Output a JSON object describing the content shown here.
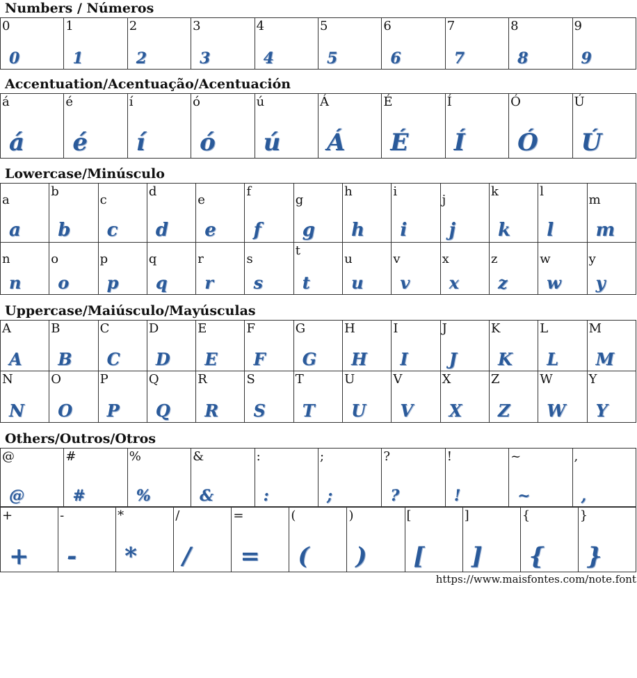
{
  "accent_color": "#2a5a9a",
  "sections": [
    {
      "title": "Numbers / Números",
      "rows": [
        [
          "0",
          "1",
          "2",
          "3",
          "4",
          "5",
          "6",
          "7",
          "8",
          "9"
        ]
      ]
    },
    {
      "title": "Accentuation/Acentuação/Acentuación",
      "rows": [
        [
          "á",
          "é",
          "í",
          "ó",
          "ú",
          "Á",
          "É",
          "Í",
          "Ó",
          "Ú"
        ]
      ]
    },
    {
      "title": "Lowercase/Minúsculo",
      "rows": [
        [
          "a",
          "b",
          "c",
          "d",
          "e",
          "f",
          "g",
          "h",
          "i",
          "j",
          "k",
          "l",
          "m"
        ],
        [
          "n",
          "o",
          "p",
          "q",
          "r",
          "s",
          "t",
          "u",
          "v",
          "x",
          "z",
          "w",
          "y"
        ]
      ]
    },
    {
      "title": "Uppercase/Maiúsculo/Mayúsculas",
      "rows": [
        [
          "A",
          "B",
          "C",
          "D",
          "E",
          "F",
          "G",
          "H",
          "I",
          "J",
          "K",
          "L",
          "M"
        ],
        [
          "N",
          "O",
          "P",
          "Q",
          "R",
          "S",
          "T",
          "U",
          "V",
          "X",
          "Z",
          "W",
          "Y"
        ]
      ]
    },
    {
      "title": "Others/Outros/Otros",
      "rows": [
        [
          "@",
          "#",
          "%",
          "&",
          ":",
          ";",
          "?",
          "!",
          "~",
          ","
        ]
      ]
    },
    {
      "title": "",
      "rows": [
        [
          "+",
          "-",
          "*",
          "/",
          "=",
          "(",
          ")",
          "[",
          "]",
          "{",
          "}"
        ]
      ]
    }
  ],
  "footer_url": "https://www.maisfontes.com/note.font"
}
